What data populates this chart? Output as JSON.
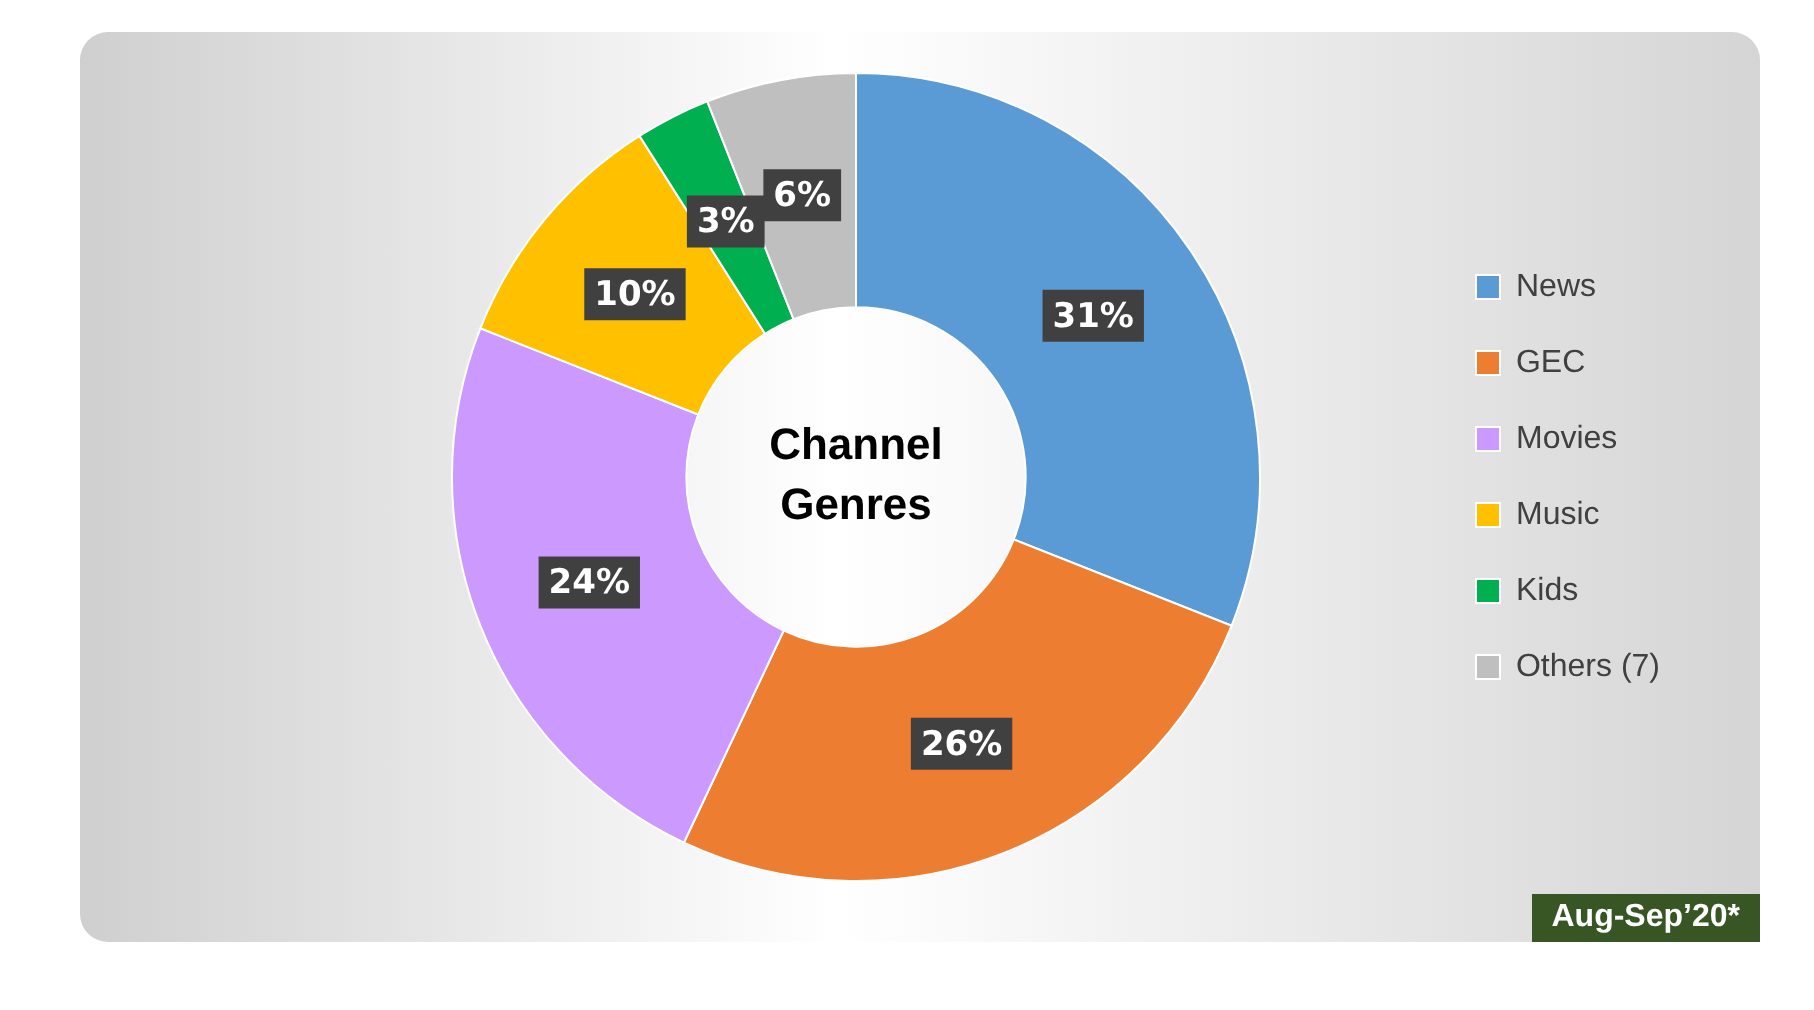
{
  "chart_data": {
    "type": "donut",
    "title": "Channel Genres",
    "categories": [
      "News",
      "GEC",
      "Movies",
      "Music",
      "Kids",
      "Others (7)"
    ],
    "values": [
      31,
      26,
      24,
      10,
      3,
      6
    ],
    "colors": [
      "#5b9bd5",
      "#ed7d31",
      "#cc99ff",
      "#ffc000",
      "#00b050",
      "#bfbfbf"
    ],
    "value_labels": [
      "31%",
      "26%",
      "24%",
      "10%",
      "3%",
      "6%"
    ],
    "legend": "right",
    "annotations": [
      "Aug-Sep’20*"
    ]
  }
}
